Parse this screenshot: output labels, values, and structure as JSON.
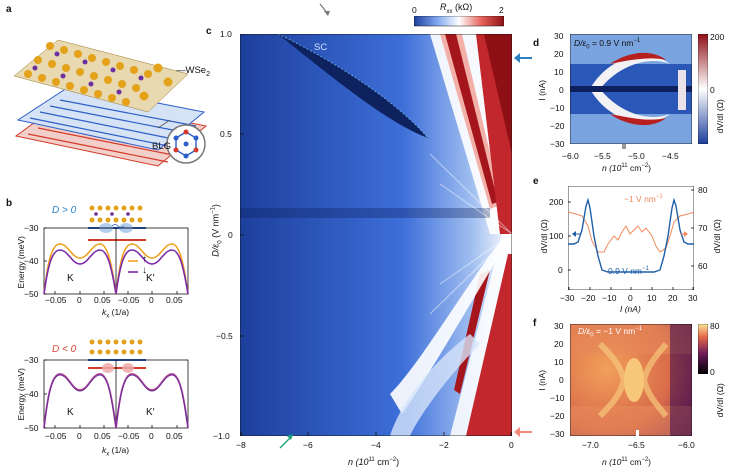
{
  "panels": {
    "a": {
      "letter": "a",
      "labels": {
        "wse2": "WSe",
        "wse2_sub": "2",
        "blg": "BLG"
      }
    },
    "b": {
      "letter": "b",
      "top": {
        "condition": "D > 0",
        "ylabel": "Energy (meV)",
        "yticks": [
          "−30",
          "−40",
          "−50"
        ],
        "xticks": [
          "−0.05",
          "0",
          "0.05",
          "−0.05",
          "0",
          "0.05"
        ],
        "xlabel": "k",
        "xlabel_sub": "x",
        "xlabel_unit": " (1/a)",
        "valley_left": "K",
        "valley_right": "K′",
        "spin_up": "↑",
        "spin_down": "↓"
      },
      "bottom": {
        "condition": "D < 0",
        "ylabel": "Energy (meV)",
        "yticks": [
          "−30",
          "−40",
          "−50"
        ],
        "xticks": [
          "−0.05",
          "0",
          "0.05",
          "−0.05",
          "0",
          "0.05"
        ],
        "xlabel": "k",
        "xlabel_sub": "x",
        "xlabel_unit": " (1/a)",
        "valley_left": "K",
        "valley_right": "K′"
      }
    },
    "c": {
      "letter": "c",
      "colorbar_label": "R",
      "colorbar_label_sub": "xx",
      "colorbar_unit": " (kΩ)",
      "colorbar_ticks": [
        "0",
        "2"
      ],
      "ylabel": "D/ε",
      "ylabel_sub": "0",
      "ylabel_unit": " (V nm",
      "ylabel_sup": "−1",
      "ylabel_end": ")",
      "yticks": [
        "1.0",
        "0.5",
        "0",
        "−0.5",
        "−1.0"
      ],
      "xticks": [
        "−8",
        "−6",
        "−4",
        "−2",
        "0"
      ],
      "xlabel": "n (10",
      "xlabel_sup": "11",
      "xlabel_unit": " cm",
      "xlabel_sup2": "−2",
      "xlabel_end": ")",
      "region_label": "SC"
    },
    "d": {
      "letter": "d",
      "annotation": "D/ε",
      "annotation_sub": "0",
      "annotation_rest": " = 0.9 V nm",
      "annotation_sup": "−1",
      "ylabel": "I (nA)",
      "yticks": [
        "30",
        "20",
        "10",
        "0",
        "−10",
        "−20",
        "−30"
      ],
      "xticks": [
        "−6.0",
        "−5.5",
        "−5.0",
        "−4.5"
      ],
      "xlabel": "n (10",
      "xlabel_sup": "11",
      "xlabel_unit": " cm",
      "xlabel_sup2": "−2",
      "xlabel_end": ")",
      "colorbar_ticks": [
        "200",
        "0"
      ],
      "colorbar_label": "dV/dI (Ω)"
    },
    "e": {
      "letter": "e",
      "left_ylabel": "dV/dI (Ω)",
      "left_yticks": [
        "200",
        "100",
        "0"
      ],
      "right_ylabel": "dV/dI (Ω)",
      "right_yticks": [
        "80",
        "70",
        "60"
      ],
      "xticks": [
        "−30",
        "−20",
        "−10",
        "0",
        "10",
        "20",
        "30"
      ],
      "xlabel": "I (nA)",
      "label_orange": "−1 V nm",
      "label_orange_sup": "−1",
      "label_blue": "0.9 V nm",
      "label_blue_sup": "−1",
      "colors": {
        "blue": "#1f5fa8",
        "orange": "#ef8a5a"
      }
    },
    "f": {
      "letter": "f",
      "annotation": "D/ε",
      "annotation_sub": "0",
      "annotation_rest": " = −1 V nm",
      "annotation_sup": "−1",
      "ylabel": "I (nA)",
      "yticks": [
        "30",
        "20",
        "10",
        "0",
        "−10",
        "−20",
        "−30"
      ],
      "xticks": [
        "−7.0",
        "−6.5",
        "−6.0"
      ],
      "xlabel": "n (10",
      "xlabel_sup": "11",
      "xlabel_unit": " cm",
      "xlabel_sup2": "−2",
      "xlabel_end": ")",
      "colorbar_ticks": [
        "80",
        "0"
      ],
      "colorbar_label": "dV/dI (Ω)"
    }
  },
  "colors": {
    "blue_marker": "#2e7fc0",
    "pink_marker": "#f08a7e",
    "green_marker": "#1aa37a",
    "grey_marker": "#777777"
  }
}
